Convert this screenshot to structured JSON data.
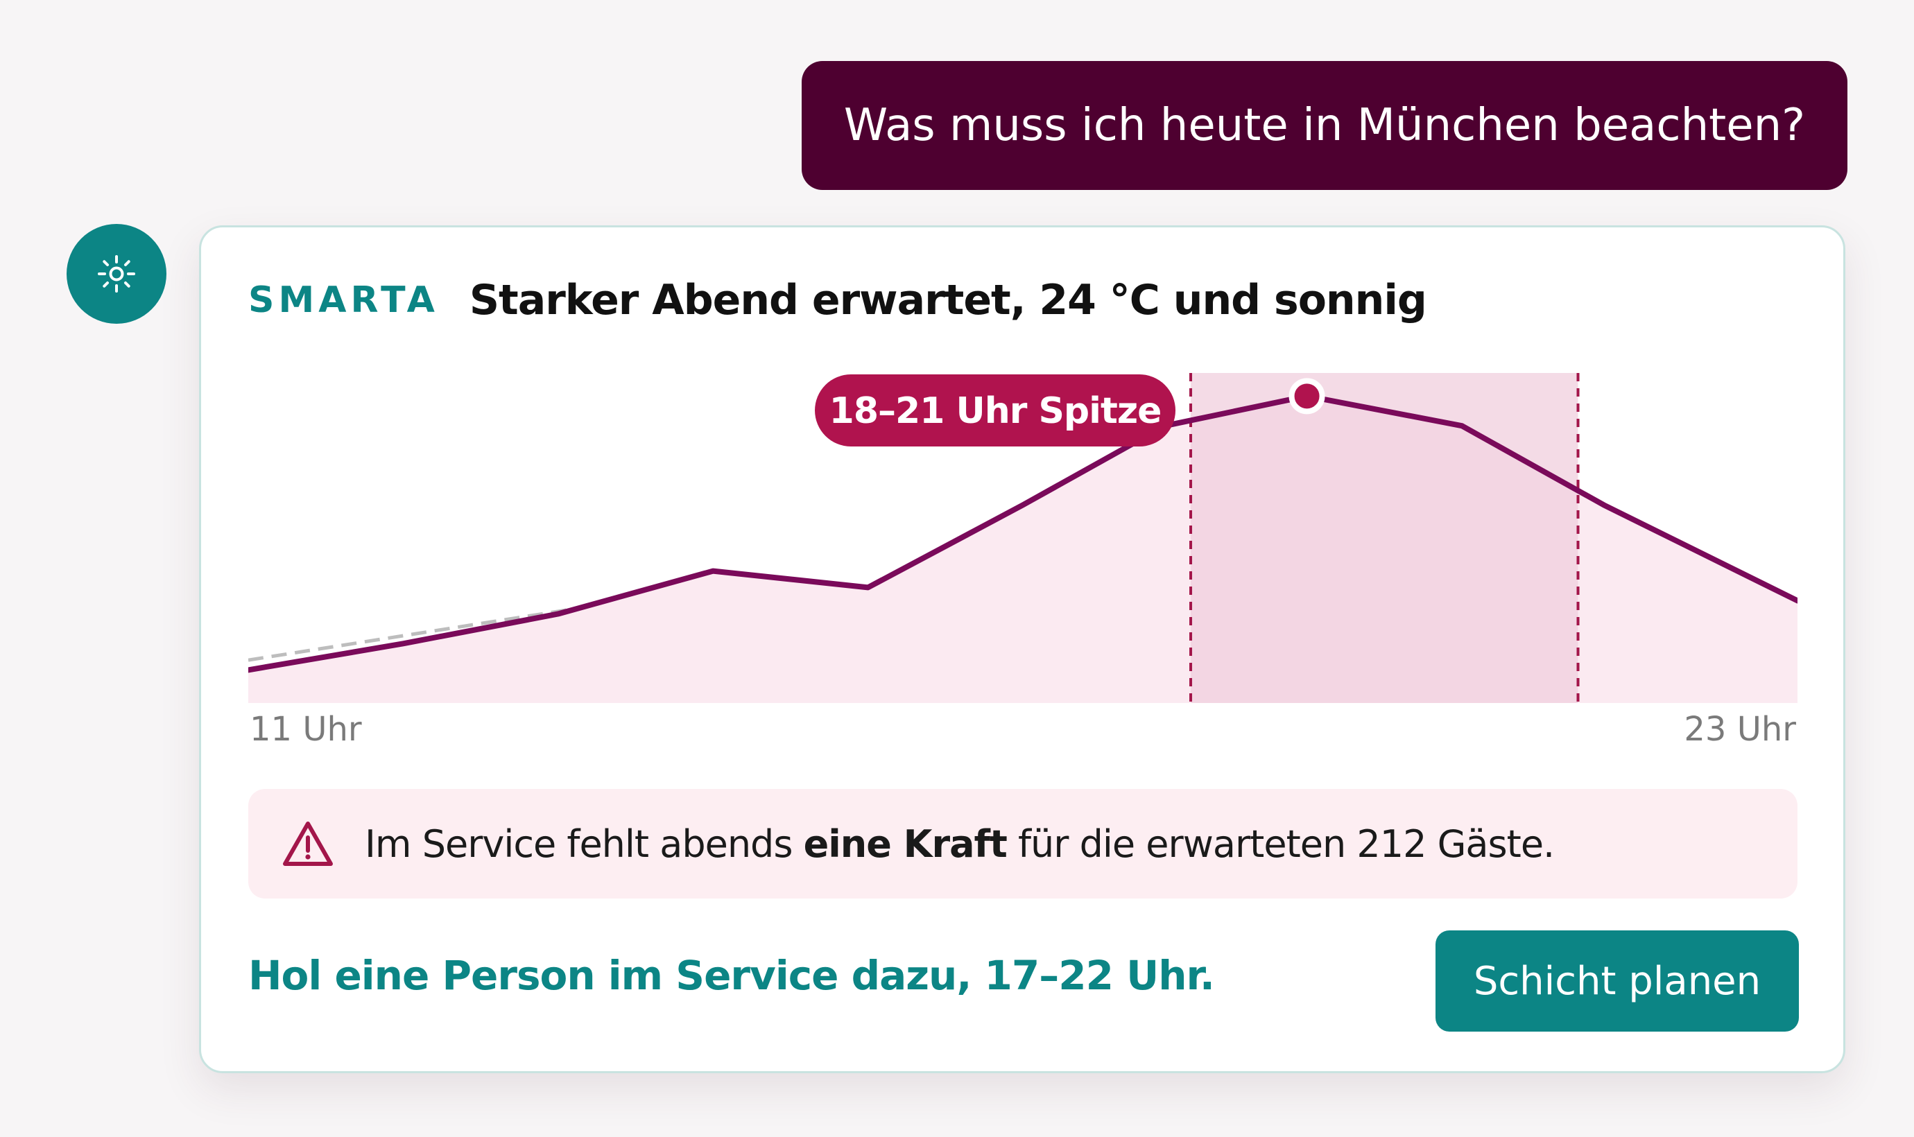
{
  "user_message": "Was muss ich heute in München beachten?",
  "card": {
    "brand": "SMARTA",
    "headline": "Starker Abend erwartet, 24 °C und sonnig",
    "peak_label": "18–21 Uhr Spitze",
    "warning": {
      "before": "Im Service fehlt abends ",
      "bold": "eine Kraft",
      "after": " für die erwarteten 212 Gäste."
    },
    "recommendation": "Hol eine Person im Service dazu, 17–22 Uhr.",
    "button_label": "Schicht planen"
  },
  "icons": {
    "avatar": "sun-icon",
    "warning": "warning-triangle-icon"
  },
  "colors": {
    "user_bubble": "#4e0030",
    "teal": "#0c8585",
    "line": "#7a0a5a",
    "area": "#fbeaf1",
    "peak_window": "#f0cfdd",
    "peak_marker": "#b0134e",
    "comparison": "#bdbdbd",
    "warning_bg": "#fdeef2"
  },
  "chart_data": {
    "type": "line",
    "x_ticks": [
      "11 Uhr",
      "23 Uhr"
    ],
    "x_range": [
      11,
      23
    ],
    "y_range": [
      0,
      100
    ],
    "series": [
      {
        "role": "forecast",
        "x": [
          11,
          12.2,
          13.4,
          14.6,
          15.8,
          17,
          18.1,
          19.2,
          20.4,
          21.5,
          23
        ],
        "values": [
          10,
          18,
          27,
          40,
          35,
          60,
          84,
          93,
          84,
          60,
          31
        ]
      },
      {
        "role": "comparison",
        "style": "dashed",
        "x": [
          11,
          13.6
        ],
        "values": [
          13,
          29
        ]
      }
    ],
    "highlight": {
      "x_start": 18.3,
      "x_end": 21.3,
      "label": "18–21 Uhr Spitze"
    },
    "peak_point": {
      "x": 19.2,
      "value": 93
    },
    "grid": false,
    "legend": "none"
  }
}
